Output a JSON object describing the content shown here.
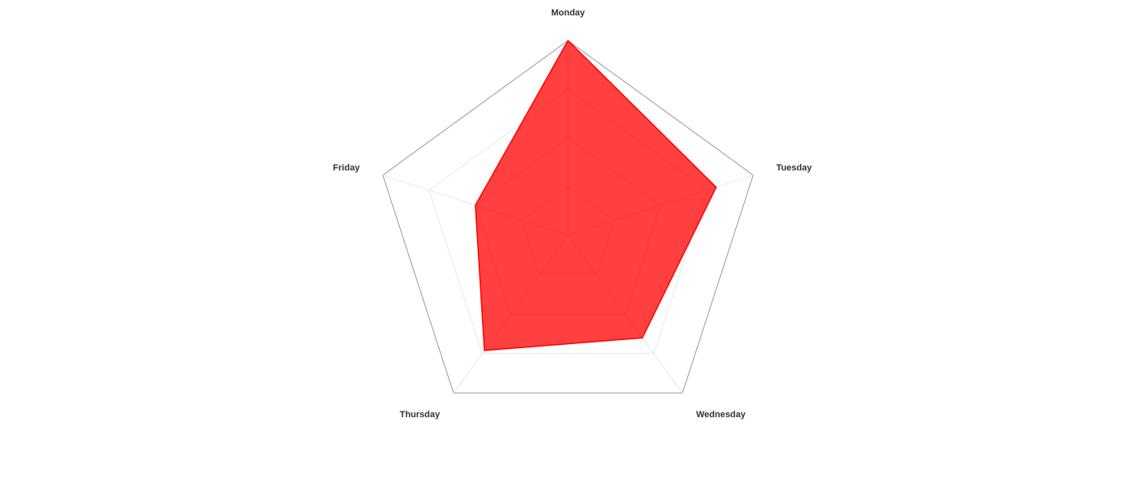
{
  "chart_data": {
    "type": "radar",
    "axes": [
      "Monday",
      "Tuesday",
      "Wednesday",
      "Thursday",
      "Friday"
    ],
    "series": [
      {
        "values": [
          100,
          80,
          65,
          73,
          50
        ]
      }
    ],
    "range": [
      0,
      100
    ],
    "grid_levels": 4,
    "grid": true,
    "legend": "none",
    "colors": {
      "fill": "#ff0000",
      "stroke": "#ff0000",
      "outer_ring": "#999999",
      "inner_ring": "#e8e8e8",
      "spoke": "#e8e8e8"
    }
  }
}
